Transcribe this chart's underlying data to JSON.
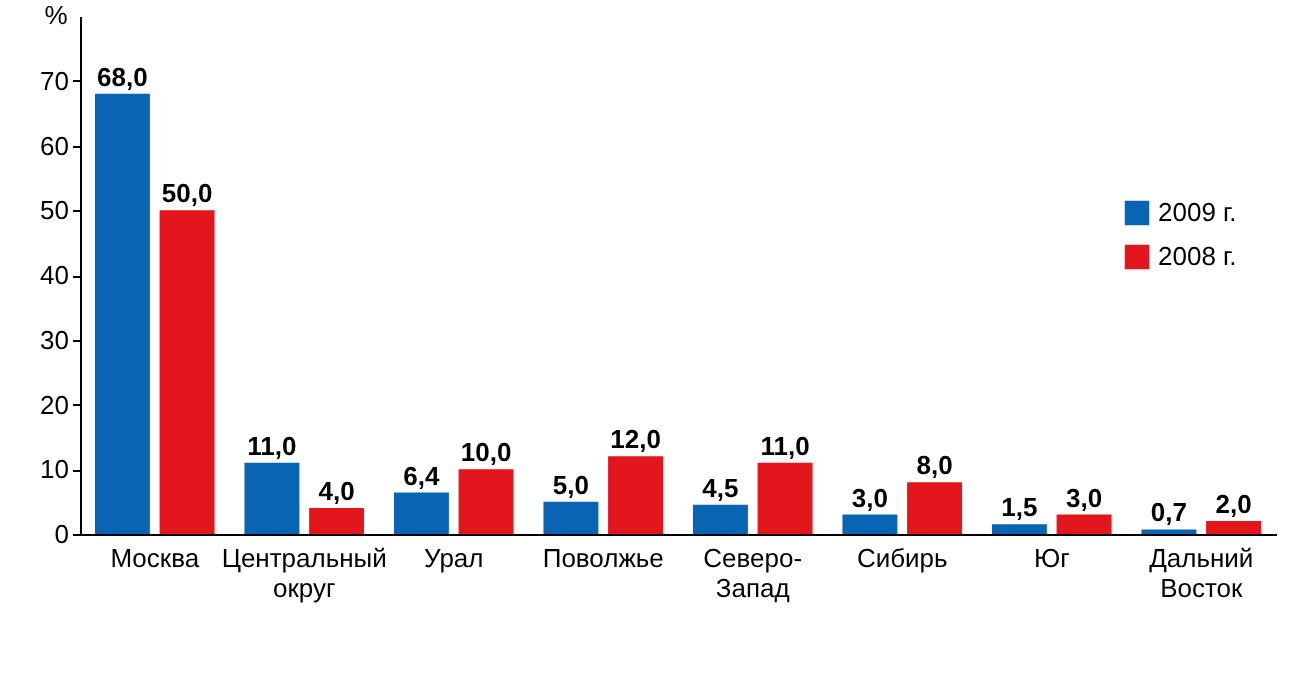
{
  "chart_data": {
    "type": "bar",
    "ylabel": "%",
    "categories": [
      "Москва",
      "Центральный\nокруг",
      "Урал",
      "Поволжье",
      "Северо-\nЗапад",
      "Сибирь",
      "Юг",
      "Дальний\nВосток"
    ],
    "series": [
      {
        "name": "2009 г.",
        "color": "#0a64b4",
        "values": [
          68.0,
          11.0,
          6.4,
          5.0,
          4.5,
          3.0,
          1.5,
          0.7
        ],
        "value_labels": [
          "68,0",
          "11,0",
          "6,4",
          "5,0",
          "4,5",
          "3,0",
          "1,5",
          "0,7"
        ]
      },
      {
        "name": "2008 г.",
        "color": "#e3161e",
        "values": [
          50.0,
          4.0,
          10.0,
          12.0,
          11.0,
          8.0,
          3.0,
          2.0
        ],
        "value_labels": [
          "50,0",
          "4,0",
          "10,0",
          "12,0",
          "11,0",
          "8,0",
          "3,0",
          "2,0"
        ]
      }
    ],
    "ylim": [
      0,
      80
    ],
    "yticks": [
      0,
      10,
      20,
      30,
      40,
      50,
      60,
      70
    ],
    "legend": "top right",
    "grid": false
  }
}
